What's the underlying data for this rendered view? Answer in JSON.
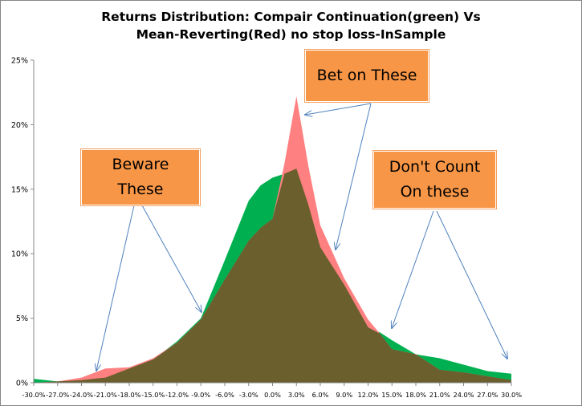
{
  "chart_data": {
    "type": "area",
    "title_lines": [
      "Returns Distribution: Compair Continuation(green) Vs",
      "Mean-Reverting(Red) no stop loss-InSample"
    ],
    "xlabel": "",
    "ylabel": "",
    "x": [
      -30,
      -27,
      -24,
      -21,
      -18,
      -15,
      -12,
      -9,
      -6,
      -3,
      -1.5,
      0,
      1.5,
      3,
      4.5,
      6,
      9,
      12,
      13.5,
      15,
      18,
      21,
      24,
      27,
      30
    ],
    "x_tick_labels": [
      "-30.0%",
      "-27.0%",
      "-24.0%",
      "-21.0%",
      "-18.0%",
      "-15.0%",
      "-12.0%",
      "-9.0%",
      "-6.0%",
      "-3.0%",
      "0.0%",
      "3.0%",
      "6.0%",
      "9.0%",
      "12.0%",
      "15.0%",
      "18.0%",
      "21.0%",
      "24.0%",
      "27.0%",
      "30.0%"
    ],
    "x_tick_values": [
      -30,
      -27,
      -24,
      -21,
      -18,
      -15,
      -12,
      -9,
      -6,
      -3,
      0,
      3,
      6,
      9,
      12,
      15,
      18,
      21,
      24,
      27,
      30
    ],
    "y_tick_labels": [
      "0%",
      "5%",
      "10%",
      "15%",
      "20%",
      "25%"
    ],
    "y_tick_values": [
      0,
      5,
      10,
      15,
      20,
      25
    ],
    "ylim": [
      0,
      25
    ],
    "xlim": [
      -30,
      30
    ],
    "grid": false,
    "series": [
      {
        "color": "#00b050",
        "values": [
          0.3,
          0.1,
          0.2,
          0.4,
          1.1,
          1.8,
          3.2,
          5.0,
          9.5,
          14.1,
          15.3,
          15.9,
          16.2,
          16.6,
          13.8,
          10.5,
          7.6,
          4.3,
          3.9,
          3.3,
          2.2,
          1.9,
          1.4,
          0.9,
          0.7
        ]
      },
      {
        "color": "#ff8080",
        "values": [
          0.0,
          0.1,
          0.4,
          1.1,
          1.2,
          1.9,
          3.1,
          4.9,
          8.0,
          11.0,
          12.0,
          12.7,
          17.0,
          22.2,
          16.8,
          12.2,
          8.1,
          4.9,
          3.8,
          2.6,
          2.2,
          1.0,
          0.8,
          0.5,
          0.2
        ]
      }
    ],
    "overlap_color": "#6b5f2e"
  },
  "callouts": [
    {
      "lines": [
        "Beware",
        "These"
      ]
    },
    {
      "lines": [
        "Bet on These"
      ]
    },
    {
      "lines": [
        "Don't Count",
        "On these"
      ]
    }
  ]
}
